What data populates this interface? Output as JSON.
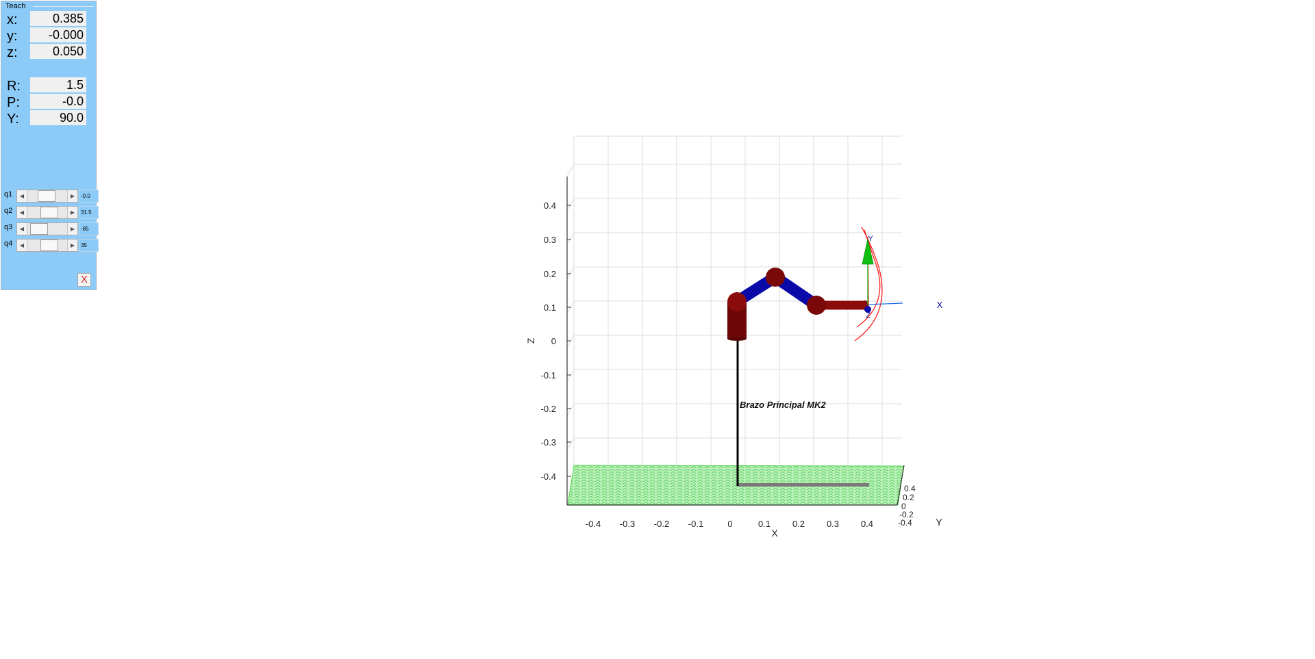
{
  "teach_panel": {
    "title": "Teach",
    "position": [
      {
        "label": "x:",
        "value": "0.385"
      },
      {
        "label": "y:",
        "value": "-0.000"
      },
      {
        "label": "z:",
        "value": "0.050"
      }
    ],
    "orientation": [
      {
        "label": "R:",
        "value": "1.5"
      },
      {
        "label": "P:",
        "value": "-0.0"
      },
      {
        "label": "Y:",
        "value": "90.0"
      }
    ],
    "joints": [
      {
        "label": "q1",
        "value": "-0.0",
        "slider_fraction": 0.46
      },
      {
        "label": "q2",
        "value": "31.5",
        "slider_fraction": 0.58
      },
      {
        "label": "q3",
        "value": "-85",
        "slider_fraction": 0.14
      },
      {
        "label": "q4",
        "value": "35",
        "slider_fraction": 0.6
      }
    ],
    "close_label": "X"
  },
  "plot": {
    "z_axis_label": "Z",
    "x_axis_label": "X",
    "y_axis_label": "Y",
    "z_ticks": [
      "0.4",
      "0.3",
      "0.2",
      "0.1",
      "0",
      "-0.1",
      "-0.2",
      "-0.3",
      "-0.4"
    ],
    "x_ticks": [
      "-0.4",
      "-0.3",
      "-0.2",
      "-0.1",
      "0",
      "0.1",
      "0.2",
      "0.3",
      "0.4"
    ],
    "y_ticks": [
      "0.4",
      "0.2",
      "0",
      "-0.2",
      "-0.4"
    ],
    "robot_name": "Brazo Principal MK2",
    "tool_frame_labels": {
      "x": "X",
      "y": "Y",
      "z": "Z"
    },
    "colors": {
      "floor": "#58d458",
      "link": "#0a0aa8",
      "joint": "#7a0808",
      "base": "#000000",
      "grid": "#dcdcdc",
      "tool_trace": "#ff2020",
      "tool_x": "#1a6ee6",
      "tool_z": "#10b010"
    }
  }
}
